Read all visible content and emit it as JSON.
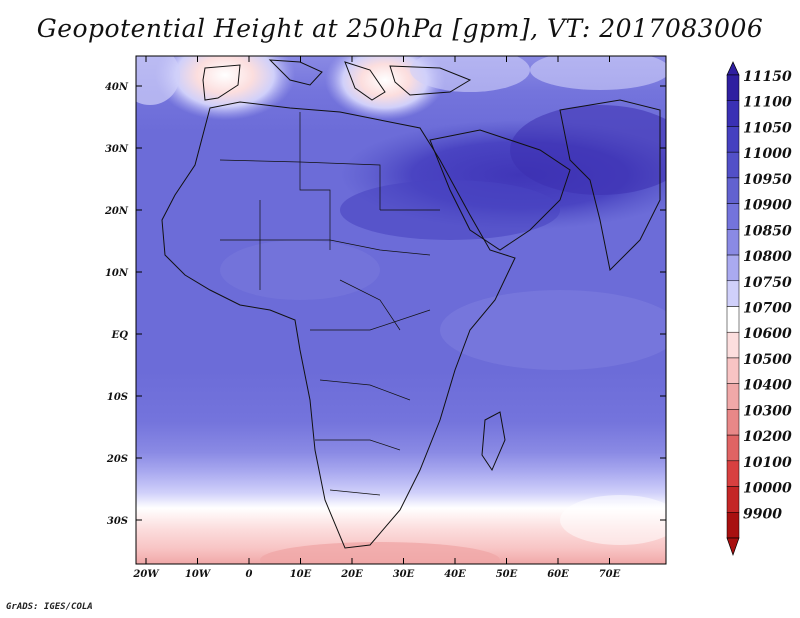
{
  "title": "Geopotential Height at 250hPa [gpm], VT: 2017083006",
  "credit": "GrADS: IGES/COLA",
  "map": {
    "lat_labels": [
      "40N",
      "30N",
      "20N",
      "10N",
      "EQ",
      "10S",
      "20S",
      "30S"
    ],
    "lon_labels": [
      "20W",
      "10W",
      "0",
      "10E",
      "20E",
      "30E",
      "40E",
      "50E",
      "60E",
      "70E"
    ]
  },
  "colorbar": {
    "levels": [
      "11150",
      "11100",
      "11050",
      "11000",
      "10950",
      "10900",
      "10850",
      "10800",
      "10750",
      "10700",
      "10600",
      "10500",
      "10400",
      "10300",
      "10200",
      "10100",
      "10000",
      "9900"
    ],
    "colors": [
      "#2f1fa0",
      "#3a30b4",
      "#4540c0",
      "#5250c8",
      "#6262d0",
      "#7474dc",
      "#8a8ae4",
      "#aaaaf0",
      "#d0d0fa",
      "#ffffff",
      "#fcdede",
      "#f8c4c4",
      "#f0a8a8",
      "#e88888",
      "#e06464",
      "#d84040",
      "#c42626",
      "#a81010"
    ]
  }
}
